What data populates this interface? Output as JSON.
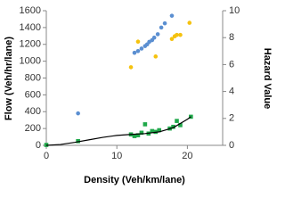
{
  "chart_data": {
    "type": "scatter",
    "x_label": "Density (Veh/km/lane)",
    "y_label": "Flow (Veh/hr/lane)",
    "y2_label": "Hazard Value",
    "xlim": [
      0,
      25
    ],
    "xticks": [
      0,
      10,
      20
    ],
    "ylim": [
      0,
      1600
    ],
    "yticks": [
      0,
      200,
      400,
      600,
      800,
      1000,
      1200,
      1400,
      1600
    ],
    "y2lim": [
      0,
      10
    ],
    "y2ticks": [
      0,
      2,
      4,
      6,
      8,
      10
    ],
    "series": [
      {
        "color": "#5b8fd1",
        "marker": "circle",
        "x": [
          4.5,
          12.5,
          13,
          13.5,
          14,
          14.3,
          14.6,
          15,
          15.3,
          15.8,
          16.3,
          16.8,
          17.8
        ],
        "values": [
          380,
          1100,
          1120,
          1150,
          1180,
          1200,
          1230,
          1250,
          1280,
          1320,
          1400,
          1450,
          1540
        ]
      },
      {
        "color": "#f5c20f",
        "marker": "circle",
        "axis": "y2",
        "x": [
          12,
          13,
          15.5,
          17.8,
          18.2,
          18.5,
          19,
          20.3
        ],
        "values": [
          5.8,
          7.7,
          6.6,
          7.9,
          8.1,
          8.2,
          8.2,
          9.1
        ]
      },
      {
        "color": "#1fa84a",
        "marker": "square",
        "x": [
          0,
          4.5,
          12,
          12.5,
          13,
          13.5,
          14,
          14.5,
          15,
          15.5,
          16,
          17.5,
          18,
          18.5,
          19,
          20.5
        ],
        "values": [
          5,
          50,
          130,
          110,
          120,
          150,
          250,
          140,
          170,
          160,
          180,
          200,
          220,
          290,
          240,
          340
        ]
      },
      {
        "color": "#000000",
        "marker": "line",
        "x": [
          0,
          2,
          4,
          6,
          8,
          10,
          12,
          14,
          16,
          18,
          20,
          20.5
        ],
        "values": [
          0,
          10,
          35,
          65,
          95,
          118,
          130,
          140,
          160,
          210,
          310,
          340
        ]
      }
    ]
  }
}
